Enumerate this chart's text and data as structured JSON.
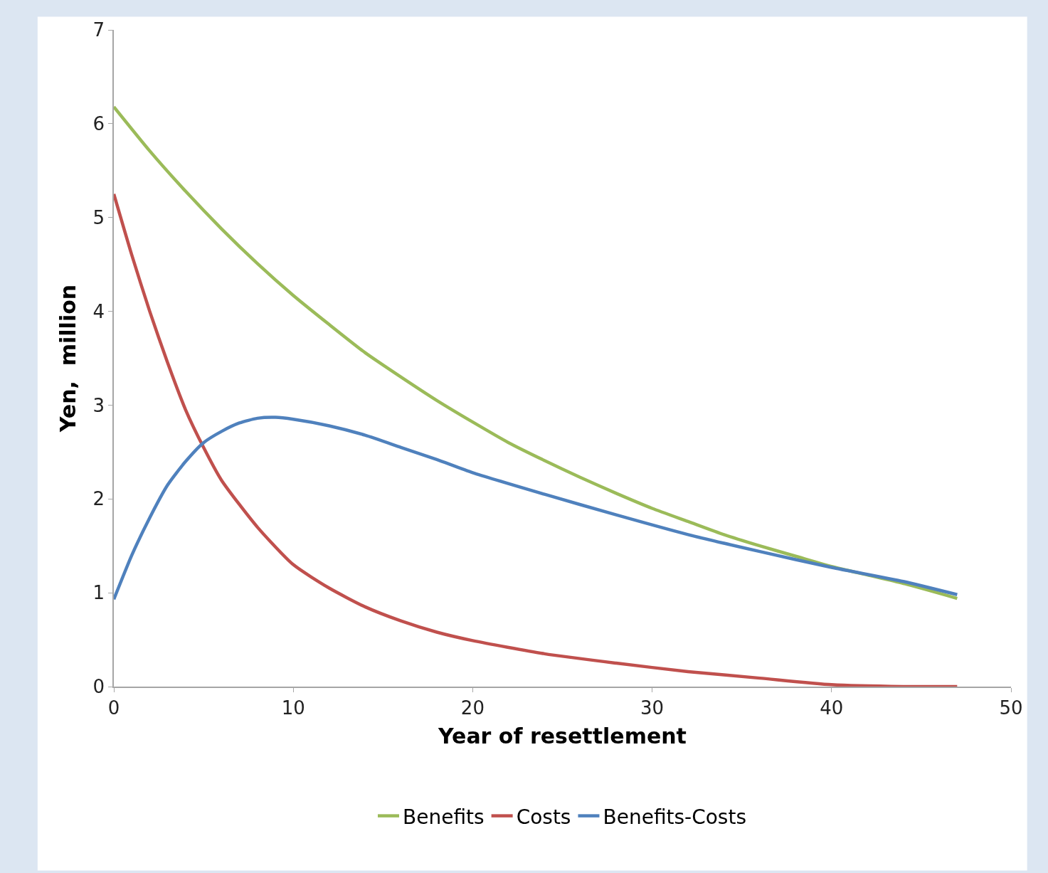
{
  "chart_data": {
    "type": "line",
    "xlabel": "Year of resettlement",
    "ylabel": "Yen,  million",
    "xlim": [
      0,
      50
    ],
    "xticks": [
      0,
      10,
      20,
      30,
      40,
      50
    ],
    "ylim": [
      0,
      7
    ],
    "yticks": [
      0,
      1,
      2,
      3,
      4,
      5,
      6,
      7
    ],
    "grid": false,
    "legend": "bottom",
    "marker": "none",
    "line_style": "solid",
    "series": [
      {
        "name": "Benefits",
        "color": "#9bbb59",
        "x": [
          0,
          2,
          4,
          6,
          8,
          10,
          12,
          14,
          16,
          18,
          20,
          22,
          24,
          26,
          28,
          30,
          32,
          34,
          36,
          38,
          40,
          42,
          44,
          47
        ],
        "values": [
          6.18,
          5.71,
          5.28,
          4.88,
          4.51,
          4.17,
          3.86,
          3.56,
          3.3,
          3.05,
          2.82,
          2.6,
          2.41,
          2.23,
          2.06,
          1.9,
          1.76,
          1.62,
          1.5,
          1.39,
          1.28,
          1.19,
          1.1,
          0.94
        ]
      },
      {
        "name": "Costs",
        "color": "#c0504d",
        "x": [
          0,
          1,
          2,
          3,
          4,
          5,
          6,
          8,
          10,
          12,
          14,
          16,
          18,
          20,
          24,
          28,
          32,
          36,
          40,
          44,
          47
        ],
        "values": [
          5.25,
          4.6,
          4.0,
          3.45,
          2.95,
          2.55,
          2.2,
          1.7,
          1.3,
          1.05,
          0.85,
          0.7,
          0.58,
          0.49,
          0.35,
          0.25,
          0.16,
          0.09,
          0.02,
          0.0,
          0.0
        ]
      },
      {
        "name": "Benefits-Costs",
        "color": "#4f81bd",
        "x": [
          0,
          1,
          2,
          3,
          4,
          5,
          6,
          7,
          8,
          9,
          10,
          12,
          14,
          16,
          18,
          20,
          24,
          28,
          32,
          36,
          40,
          44,
          47
        ],
        "values": [
          0.93,
          1.4,
          1.8,
          2.15,
          2.4,
          2.6,
          2.72,
          2.81,
          2.86,
          2.87,
          2.85,
          2.78,
          2.68,
          2.55,
          2.42,
          2.28,
          2.05,
          1.83,
          1.62,
          1.44,
          1.27,
          1.12,
          0.98
        ]
      }
    ]
  }
}
